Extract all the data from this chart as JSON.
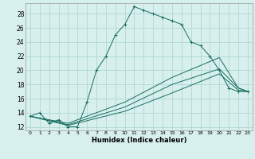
{
  "xlabel": "Humidex (Indice chaleur)",
  "bg_color": "#d7efed",
  "grid_color": "#b0d8d4",
  "line_color": "#1a6e60",
  "xlim": [
    -0.5,
    23.5
  ],
  "ylim": [
    11.5,
    29.5
  ],
  "yticks": [
    12,
    14,
    16,
    18,
    20,
    22,
    24,
    26,
    28
  ],
  "xticks": [
    0,
    1,
    2,
    3,
    4,
    5,
    6,
    7,
    8,
    9,
    10,
    11,
    12,
    13,
    14,
    15,
    16,
    17,
    18,
    19,
    20,
    21,
    22,
    23
  ],
  "lines": [
    {
      "x": [
        0,
        1,
        2,
        3,
        4,
        5,
        6,
        7,
        8,
        9,
        10,
        11,
        12,
        13,
        14,
        15,
        16,
        17,
        18,
        19,
        20,
        21,
        22,
        23
      ],
      "y": [
        13.5,
        14,
        12.5,
        13,
        12,
        12,
        15.5,
        20,
        22,
        25,
        26.5,
        29,
        28.5,
        28,
        27.5,
        27,
        26.5,
        24,
        23.5,
        22,
        20,
        17.5,
        17,
        17
      ],
      "marker": true
    },
    {
      "x": [
        0,
        4,
        10,
        15,
        20,
        22,
        23
      ],
      "y": [
        13.5,
        12.2,
        14.2,
        16.8,
        19.5,
        17.2,
        17.0
      ],
      "marker": false
    },
    {
      "x": [
        0,
        4,
        10,
        15,
        20,
        22,
        23
      ],
      "y": [
        13.5,
        12.3,
        14.8,
        18.0,
        20.2,
        17.5,
        17.0
      ],
      "marker": false
    },
    {
      "x": [
        0,
        4,
        10,
        15,
        20,
        22,
        23
      ],
      "y": [
        13.5,
        12.5,
        15.5,
        19.0,
        21.8,
        17.5,
        17.0
      ],
      "marker": false
    }
  ]
}
